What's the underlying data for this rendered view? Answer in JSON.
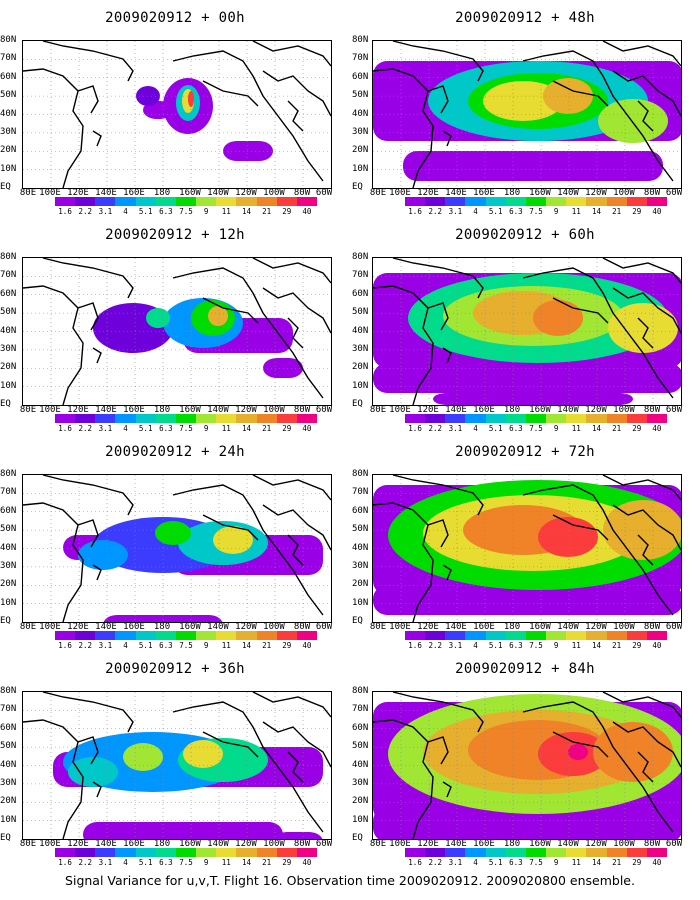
{
  "caption": "Signal Variance for u,v,T. Flight 16. Observation time 2009020912. 2009020800 ensemble.",
  "lat_labels": [
    "80N",
    "70N",
    "60N",
    "50N",
    "40N",
    "30N",
    "20N",
    "10N",
    "EQ"
  ],
  "lon_labels": [
    "80E",
    "100E",
    "120E",
    "140E",
    "160E",
    "180",
    "160W",
    "140W",
    "120W",
    "100W",
    "80W",
    "60W"
  ],
  "colorbar": {
    "colors": [
      "#9a00e6",
      "#6e00dc",
      "#3c3cff",
      "#0096ff",
      "#00c8c8",
      "#00dc8c",
      "#00dc00",
      "#a0e632",
      "#e6dc32",
      "#e6af2d",
      "#f08228",
      "#fa3c3c",
      "#f00082"
    ],
    "labels": [
      "1.6",
      "2.2",
      "3.1",
      "4",
      "5.1",
      "6.3",
      "7.5",
      "9",
      "11",
      "14",
      "21",
      "29",
      "40"
    ]
  },
  "panels": [
    {
      "title": "2009020912 + 00h",
      "level": 0
    },
    {
      "title": "2009020912 + 48h",
      "level": 4
    },
    {
      "title": "2009020912 + 12h",
      "level": 1
    },
    {
      "title": "2009020912 + 60h",
      "level": 5
    },
    {
      "title": "2009020912 + 24h",
      "level": 2
    },
    {
      "title": "2009020912 + 72h",
      "level": 6
    },
    {
      "title": "2009020912 + 36h",
      "level": 3
    },
    {
      "title": "2009020912 + 84h",
      "level": 7
    }
  ]
}
